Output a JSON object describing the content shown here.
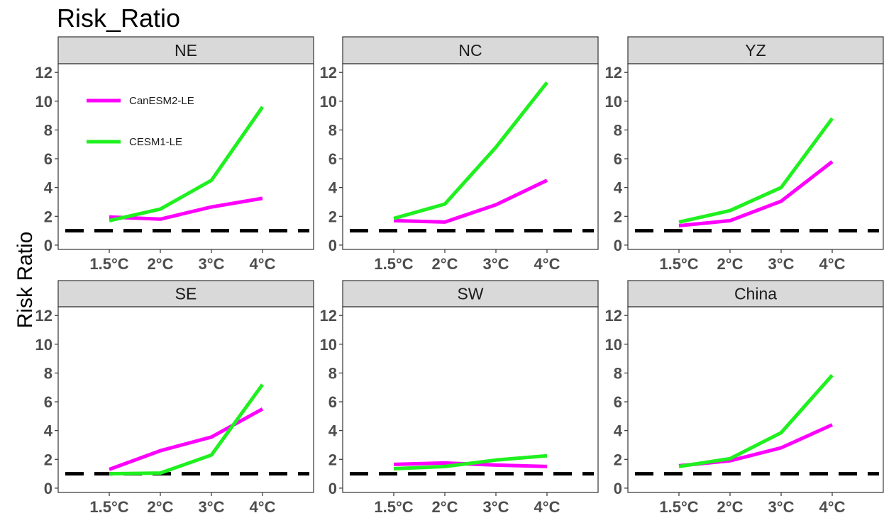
{
  "chart_data": {
    "type": "line",
    "title": "Risk_Ratio",
    "ylabel": "Risk Ratio",
    "categories": [
      "1.5°C",
      "2°C",
      "3°C",
      "4°C"
    ],
    "ylim": [
      -0.3,
      12.6
    ],
    "yticks": [
      0,
      2,
      4,
      6,
      8,
      10,
      12
    ],
    "reference_line": 1,
    "legend_position": "inside top-left of first panel",
    "colors": {
      "CanESM2-LE": "#ff00ff",
      "CESM1-LE": "#1ff01f",
      "reference": "#000000",
      "strip": "#d9d9d9"
    },
    "legend": [
      "CanESM2-LE",
      "CESM1-LE"
    ],
    "panels": [
      {
        "name": "NE",
        "series": [
          {
            "name": "CanESM2-LE",
            "values": [
              1.95,
              1.8,
              2.65,
              3.25
            ]
          },
          {
            "name": "CESM1-LE",
            "values": [
              1.7,
              2.5,
              4.5,
              9.6
            ]
          }
        ]
      },
      {
        "name": "NC",
        "series": [
          {
            "name": "CanESM2-LE",
            "values": [
              1.7,
              1.6,
              2.8,
              4.5
            ]
          },
          {
            "name": "CESM1-LE",
            "values": [
              1.85,
              2.85,
              6.8,
              11.3
            ]
          }
        ]
      },
      {
        "name": "YZ",
        "series": [
          {
            "name": "CanESM2-LE",
            "values": [
              1.35,
              1.7,
              3.05,
              5.8
            ]
          },
          {
            "name": "CESM1-LE",
            "values": [
              1.6,
              2.4,
              4.0,
              8.8
            ]
          }
        ]
      },
      {
        "name": "SE",
        "series": [
          {
            "name": "CanESM2-LE",
            "values": [
              1.3,
              2.6,
              3.55,
              5.5
            ]
          },
          {
            "name": "CESM1-LE",
            "values": [
              1.0,
              1.05,
              2.3,
              7.2
            ]
          }
        ]
      },
      {
        "name": "SW",
        "series": [
          {
            "name": "CanESM2-LE",
            "values": [
              1.65,
              1.75,
              1.6,
              1.5
            ]
          },
          {
            "name": "CESM1-LE",
            "values": [
              1.35,
              1.5,
              1.95,
              2.25
            ]
          }
        ]
      },
      {
        "name": "China",
        "series": [
          {
            "name": "CanESM2-LE",
            "values": [
              1.55,
              1.9,
              2.8,
              4.4
            ]
          },
          {
            "name": "CESM1-LE",
            "values": [
              1.5,
              2.05,
              3.85,
              7.85
            ]
          }
        ]
      }
    ]
  }
}
